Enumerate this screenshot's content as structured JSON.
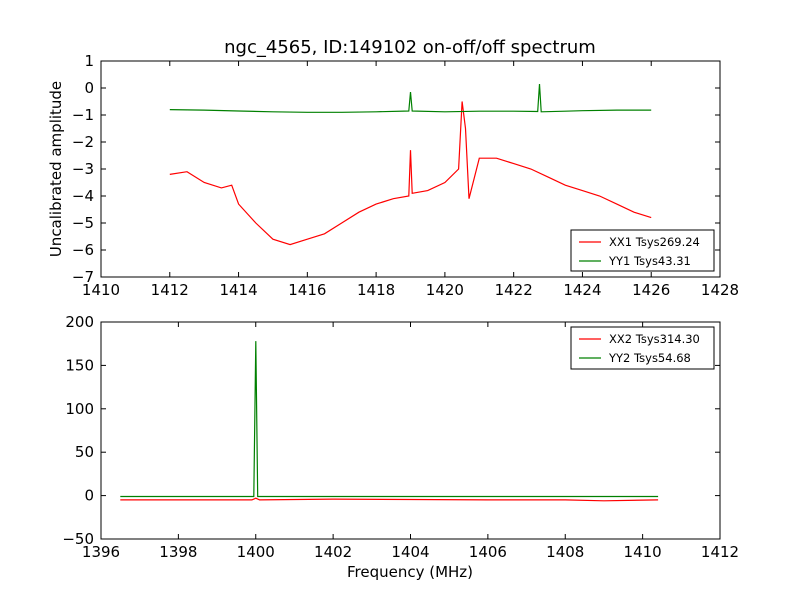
{
  "chart_data": [
    {
      "type": "line",
      "title": "ngc_4565, ID:149102 on-off/off spectrum",
      "xlabel": "",
      "ylabel": "Uncalibrated amplitude",
      "xlim": [
        1410,
        1428
      ],
      "ylim": [
        -7,
        1
      ],
      "xticks": [
        1410,
        1412,
        1414,
        1416,
        1418,
        1420,
        1422,
        1424,
        1426,
        1428
      ],
      "yticks": [
        1,
        0,
        -1,
        -2,
        -3,
        -4,
        -5,
        -6,
        -7
      ],
      "xtick_labels": [
        "1410",
        "1412",
        "1414",
        "1416",
        "1418",
        "1420",
        "1422",
        "1424",
        "1426",
        "1428"
      ],
      "ytick_labels": [
        "1",
        "0",
        "−1",
        "−2",
        "−3",
        "−4",
        "−5",
        "−6",
        "−7"
      ],
      "legend_position": "lower-right",
      "series": [
        {
          "name": "XX1 Tsys269.24",
          "color": "#ff0000",
          "x": [
            1412.0,
            1412.5,
            1413.0,
            1413.5,
            1413.8,
            1414.0,
            1414.5,
            1415.0,
            1415.5,
            1416.0,
            1416.5,
            1417.0,
            1417.5,
            1418.0,
            1418.5,
            1418.95,
            1419.0,
            1419.05,
            1419.5,
            1420.0,
            1420.4,
            1420.5,
            1420.6,
            1420.7,
            1421.0,
            1421.5,
            1422.0,
            1422.5,
            1423.0,
            1423.5,
            1424.0,
            1424.5,
            1425.0,
            1425.5,
            1426.0
          ],
          "y": [
            -3.2,
            -3.1,
            -3.5,
            -3.7,
            -3.6,
            -4.3,
            -5.0,
            -5.6,
            -5.8,
            -5.6,
            -5.4,
            -5.0,
            -4.6,
            -4.3,
            -4.1,
            -4.0,
            -2.3,
            -3.9,
            -3.8,
            -3.5,
            -3.0,
            -0.5,
            -1.5,
            -4.1,
            -2.6,
            -2.6,
            -2.8,
            -3.0,
            -3.3,
            -3.6,
            -3.8,
            -4.0,
            -4.3,
            -4.6,
            -4.8
          ]
        },
        {
          "name": "YY1 Tsys43.31",
          "color": "#008000",
          "x": [
            1412.0,
            1413.0,
            1414.0,
            1415.0,
            1416.0,
            1417.0,
            1418.0,
            1418.95,
            1419.0,
            1419.05,
            1420.0,
            1421.0,
            1422.0,
            1422.7,
            1422.75,
            1422.8,
            1423.5,
            1424.0,
            1425.0,
            1426.0
          ],
          "y": [
            -0.8,
            -0.82,
            -0.85,
            -0.88,
            -0.9,
            -0.9,
            -0.88,
            -0.85,
            -0.15,
            -0.85,
            -0.88,
            -0.86,
            -0.86,
            -0.87,
            0.15,
            -0.88,
            -0.86,
            -0.84,
            -0.82,
            -0.82
          ]
        }
      ]
    },
    {
      "type": "line",
      "title": "",
      "xlabel": "Frequency (MHz)",
      "ylabel": "",
      "xlim": [
        1396,
        1412
      ],
      "ylim": [
        -50,
        200
      ],
      "xticks": [
        1396,
        1398,
        1400,
        1402,
        1404,
        1406,
        1408,
        1410,
        1412
      ],
      "yticks": [
        200,
        150,
        100,
        50,
        0,
        -50
      ],
      "xtick_labels": [
        "1396",
        "1398",
        "1400",
        "1402",
        "1404",
        "1406",
        "1408",
        "1410",
        "1412"
      ],
      "ytick_labels": [
        "200",
        "150",
        "100",
        "50",
        "0",
        "−50"
      ],
      "legend_position": "upper-right",
      "series": [
        {
          "name": "XX2 Tsys314.30",
          "color": "#ff0000",
          "x": [
            1396.5,
            1398.0,
            1399.9,
            1400.0,
            1400.1,
            1402.0,
            1404.0,
            1406.0,
            1408.0,
            1409.0,
            1410.4
          ],
          "y": [
            -5,
            -5,
            -5,
            -3,
            -5,
            -4,
            -4.5,
            -5,
            -5,
            -6,
            -5
          ]
        },
        {
          "name": "YY2 Tsys54.68",
          "color": "#008000",
          "x": [
            1396.5,
            1398.0,
            1399.95,
            1400.0,
            1400.05,
            1402.0,
            1404.0,
            1406.0,
            1408.0,
            1410.4
          ],
          "y": [
            -1,
            -1,
            -1,
            178,
            -1,
            -1,
            -1,
            -1,
            -1,
            -1
          ]
        }
      ]
    }
  ]
}
